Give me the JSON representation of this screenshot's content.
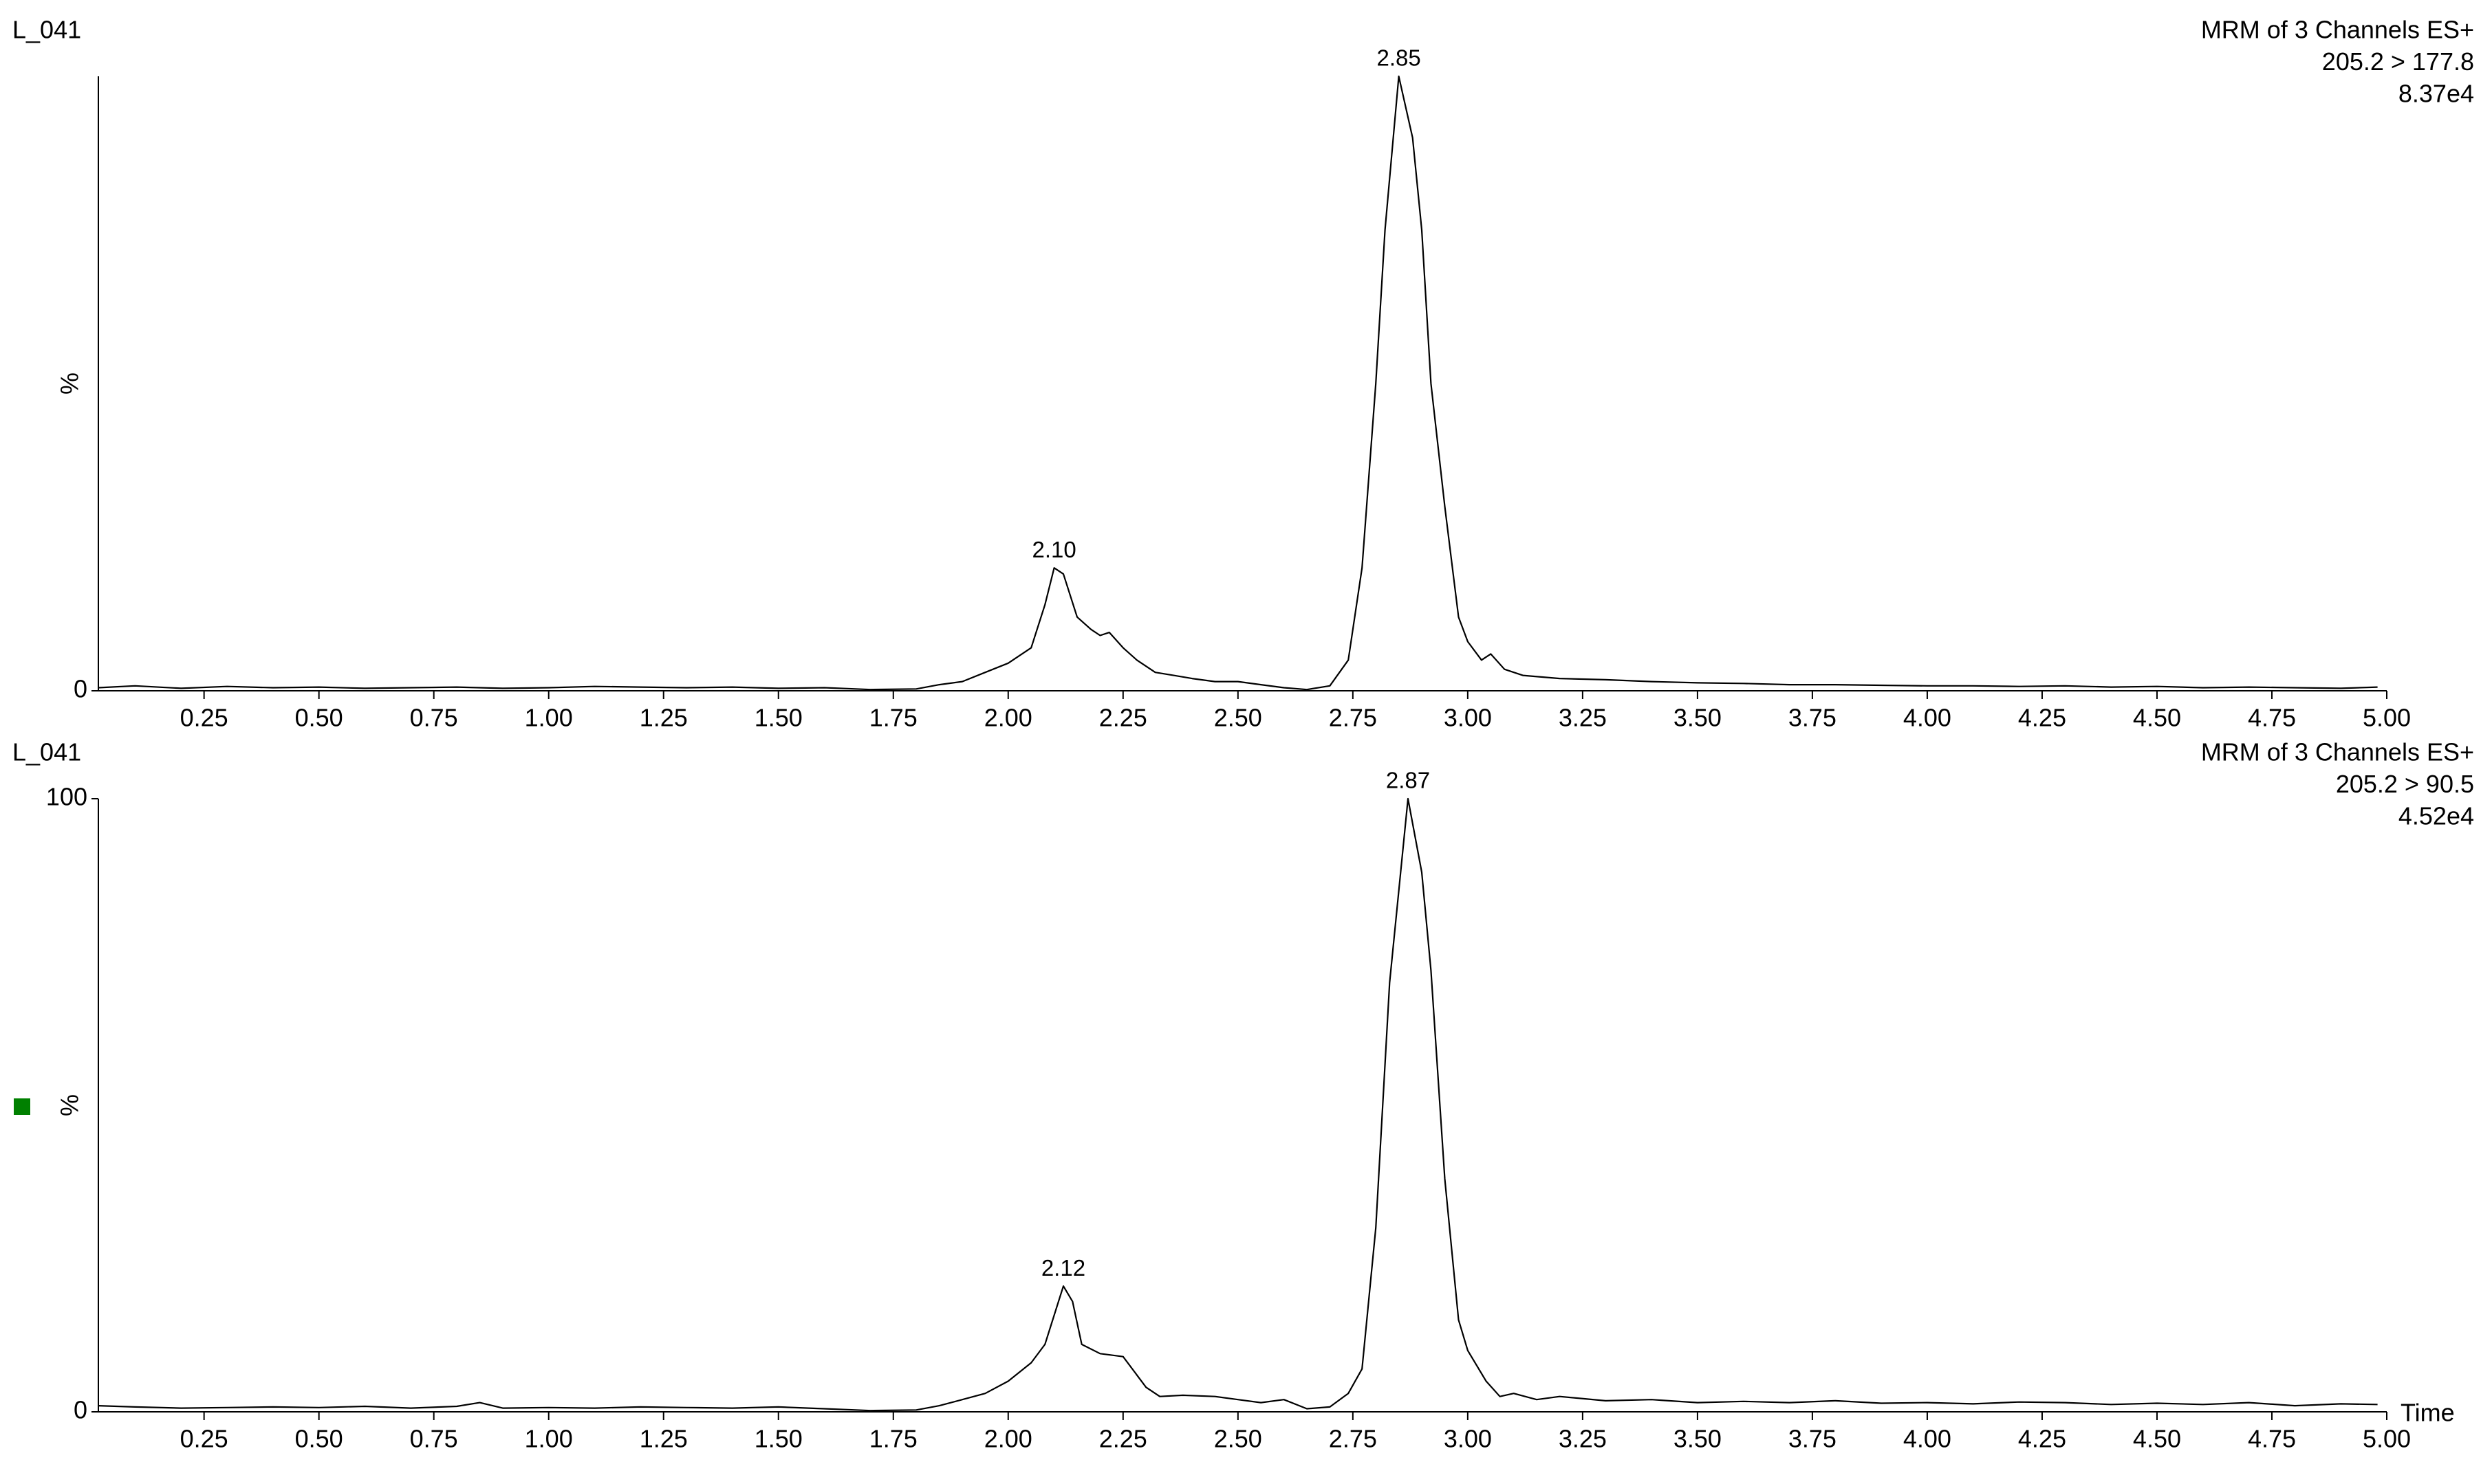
{
  "chart_data": [
    {
      "type": "line",
      "trace": "L_041",
      "header": [
        "MRM of 3 Channels ES+",
        "205.2 > 177.8",
        "8.37e4"
      ],
      "header_color": "#000000",
      "ylabel": "%",
      "xlim": [
        0.02,
        5.0
      ],
      "ylim": [
        0,
        100
      ],
      "yticks": [
        0
      ],
      "xticks": [
        {
          "value": 0.25,
          "label": "0.25"
        },
        {
          "value": 0.5,
          "label": "0.50"
        },
        {
          "value": 0.75,
          "label": "0.75"
        },
        {
          "value": 1.0,
          "label": "1.00"
        },
        {
          "value": 1.25,
          "label": "1.25"
        },
        {
          "value": 1.5,
          "label": "1.50"
        },
        {
          "value": 1.75,
          "label": "1.75"
        },
        {
          "value": 2.0,
          "label": "2.00"
        },
        {
          "value": 2.25,
          "label": "2.25"
        },
        {
          "value": 2.5,
          "label": "2.50"
        },
        {
          "value": 2.75,
          "label": "2.75"
        },
        {
          "value": 3.0,
          "label": "3.00"
        },
        {
          "value": 3.25,
          "label": "3.25"
        },
        {
          "value": 3.5,
          "label": "3.50"
        },
        {
          "value": 3.75,
          "label": "3.75"
        },
        {
          "value": 4.0,
          "label": "4.00"
        },
        {
          "value": 4.25,
          "label": "4.25"
        },
        {
          "value": 4.5,
          "label": "4.50"
        },
        {
          "value": 4.75,
          "label": "4.75"
        },
        {
          "value": 5.0,
          "label": "5.00"
        }
      ],
      "peaks": [
        {
          "x": {
            "value": 2.1,
            "label": "2.10"
          },
          "y": 20
        },
        {
          "x": 2.85,
          "y": 100
        }
      ],
      "series": [
        {
          "color": "#000000",
          "x": [
            0.02,
            0.1,
            0.2,
            0.3,
            0.4,
            0.5,
            0.6,
            0.7,
            0.8,
            0.9,
            1.0,
            1.1,
            1.2,
            1.3,
            1.4,
            1.5,
            1.6,
            1.7,
            1.8,
            1.85,
            1.9,
            1.95,
            2.0,
            2.05,
            2.08,
            2.1,
            2.12,
            2.15,
            2.18,
            2.2,
            2.22,
            2.25,
            2.28,
            2.32,
            2.36,
            2.4,
            2.45,
            2.5,
            2.55,
            2.6,
            2.65,
            2.7,
            2.74,
            2.77,
            2.8,
            2.82,
            2.85,
            2.88,
            2.9,
            2.92,
            2.95,
            2.98,
            3.0,
            3.03,
            3.05,
            3.08,
            3.12,
            3.2,
            3.3,
            3.4,
            3.5,
            3.6,
            3.7,
            3.8,
            3.9,
            4.0,
            4.1,
            4.2,
            4.3,
            4.4,
            4.5,
            4.6,
            4.7,
            4.8,
            4.9,
            4.98
          ],
          "values": [
            0.5,
            0.8,
            0.4,
            0.7,
            0.5,
            0.6,
            0.4,
            0.5,
            0.6,
            0.4,
            0.5,
            0.7,
            0.6,
            0.5,
            0.6,
            0.4,
            0.5,
            0.2,
            0.3,
            1.0,
            1.5,
            3.0,
            4.5,
            7,
            14,
            20,
            19,
            12,
            10,
            9,
            9.5,
            7,
            5,
            3,
            2.5,
            2.0,
            1.5,
            1.5,
            1.0,
            0.5,
            0.2,
            0.8,
            5,
            20,
            50,
            75,
            100,
            90,
            75,
            50,
            30,
            12,
            8,
            5,
            6,
            3.5,
            2.5,
            2.0,
            1.8,
            1.5,
            1.3,
            1.2,
            1.0,
            1.0,
            0.9,
            0.8,
            0.8,
            0.7,
            0.8,
            0.6,
            0.7,
            0.5,
            0.6,
            0.5,
            0.4,
            0.6
          ]
        }
      ]
    },
    {
      "type": "line",
      "trace": "L_041",
      "header": [
        "MRM of 3 Channels ES+",
        "205.2 > 90.5",
        "4.52e4"
      ],
      "header_color": "#008000",
      "ylabel": "%",
      "xlabel": "Time",
      "xlim": [
        0.02,
        5.0
      ],
      "ylim": [
        0,
        100
      ],
      "yticks": [
        0,
        100
      ],
      "xticks": [
        {
          "value": 0.25,
          "label": "0.25"
        },
        {
          "value": 0.5,
          "label": "0.50"
        },
        {
          "value": 0.75,
          "label": "0.75"
        },
        {
          "value": 1.0,
          "label": "1.00"
        },
        {
          "value": 1.25,
          "label": "1.25"
        },
        {
          "value": 1.5,
          "label": "1.50"
        },
        {
          "value": 1.75,
          "label": "1.75"
        },
        {
          "value": 2.0,
          "label": "2.00"
        },
        {
          "value": 2.25,
          "label": "2.25"
        },
        {
          "value": 2.5,
          "label": "2.50"
        },
        {
          "value": 2.75,
          "label": "2.75"
        },
        {
          "value": 3.0,
          "label": "3.00"
        },
        {
          "value": 3.25,
          "label": "3.25"
        },
        {
          "value": 3.5,
          "label": "3.50"
        },
        {
          "value": 3.75,
          "label": "3.75"
        },
        {
          "value": 4.0,
          "label": "4.00"
        },
        {
          "value": 4.25,
          "label": "4.25"
        },
        {
          "value": 4.5,
          "label": "4.50"
        },
        {
          "value": 4.75,
          "label": "4.75"
        },
        {
          "value": 5.0,
          "label": "5.00"
        }
      ],
      "peaks": [
        {
          "x": 2.12,
          "y": 20.5
        },
        {
          "x": 2.87,
          "y": 100
        }
      ],
      "series": [
        {
          "color": "#000000",
          "x": [
            0.02,
            0.1,
            0.2,
            0.3,
            0.4,
            0.5,
            0.6,
            0.7,
            0.8,
            0.85,
            0.9,
            1.0,
            1.1,
            1.2,
            1.3,
            1.4,
            1.5,
            1.6,
            1.7,
            1.8,
            1.85,
            1.9,
            1.95,
            2.0,
            2.05,
            2.08,
            2.12,
            2.14,
            2.16,
            2.2,
            2.25,
            2.3,
            2.33,
            2.38,
            2.45,
            2.5,
            2.55,
            2.6,
            2.65,
            2.7,
            2.74,
            2.77,
            2.8,
            2.83,
            2.87,
            2.9,
            2.92,
            2.95,
            2.98,
            3.0,
            3.04,
            3.07,
            3.1,
            3.15,
            3.2,
            3.3,
            3.4,
            3.5,
            3.6,
            3.7,
            3.8,
            3.9,
            4.0,
            4.1,
            4.2,
            4.3,
            4.4,
            4.5,
            4.6,
            4.7,
            4.8,
            4.9,
            4.98
          ],
          "values": [
            1.0,
            0.8,
            0.6,
            0.7,
            0.8,
            0.7,
            0.9,
            0.6,
            0.9,
            1.5,
            0.6,
            0.7,
            0.6,
            0.8,
            0.7,
            0.6,
            0.8,
            0.5,
            0.2,
            0.3,
            1.0,
            2,
            3,
            5,
            8,
            11,
            20.5,
            18,
            11,
            9.5,
            9,
            4,
            2.5,
            2.7,
            2.5,
            2,
            1.5,
            2,
            0.5,
            0.8,
            3,
            7,
            30,
            70,
            100,
            88,
            72,
            38,
            15,
            10,
            5,
            2.5,
            3,
            2,
            2.5,
            1.8,
            2,
            1.5,
            1.7,
            1.5,
            1.8,
            1.4,
            1.5,
            1.3,
            1.6,
            1.5,
            1.2,
            1.4,
            1.2,
            1.5,
            1.0,
            1.3,
            1.2
          ]
        }
      ]
    }
  ]
}
